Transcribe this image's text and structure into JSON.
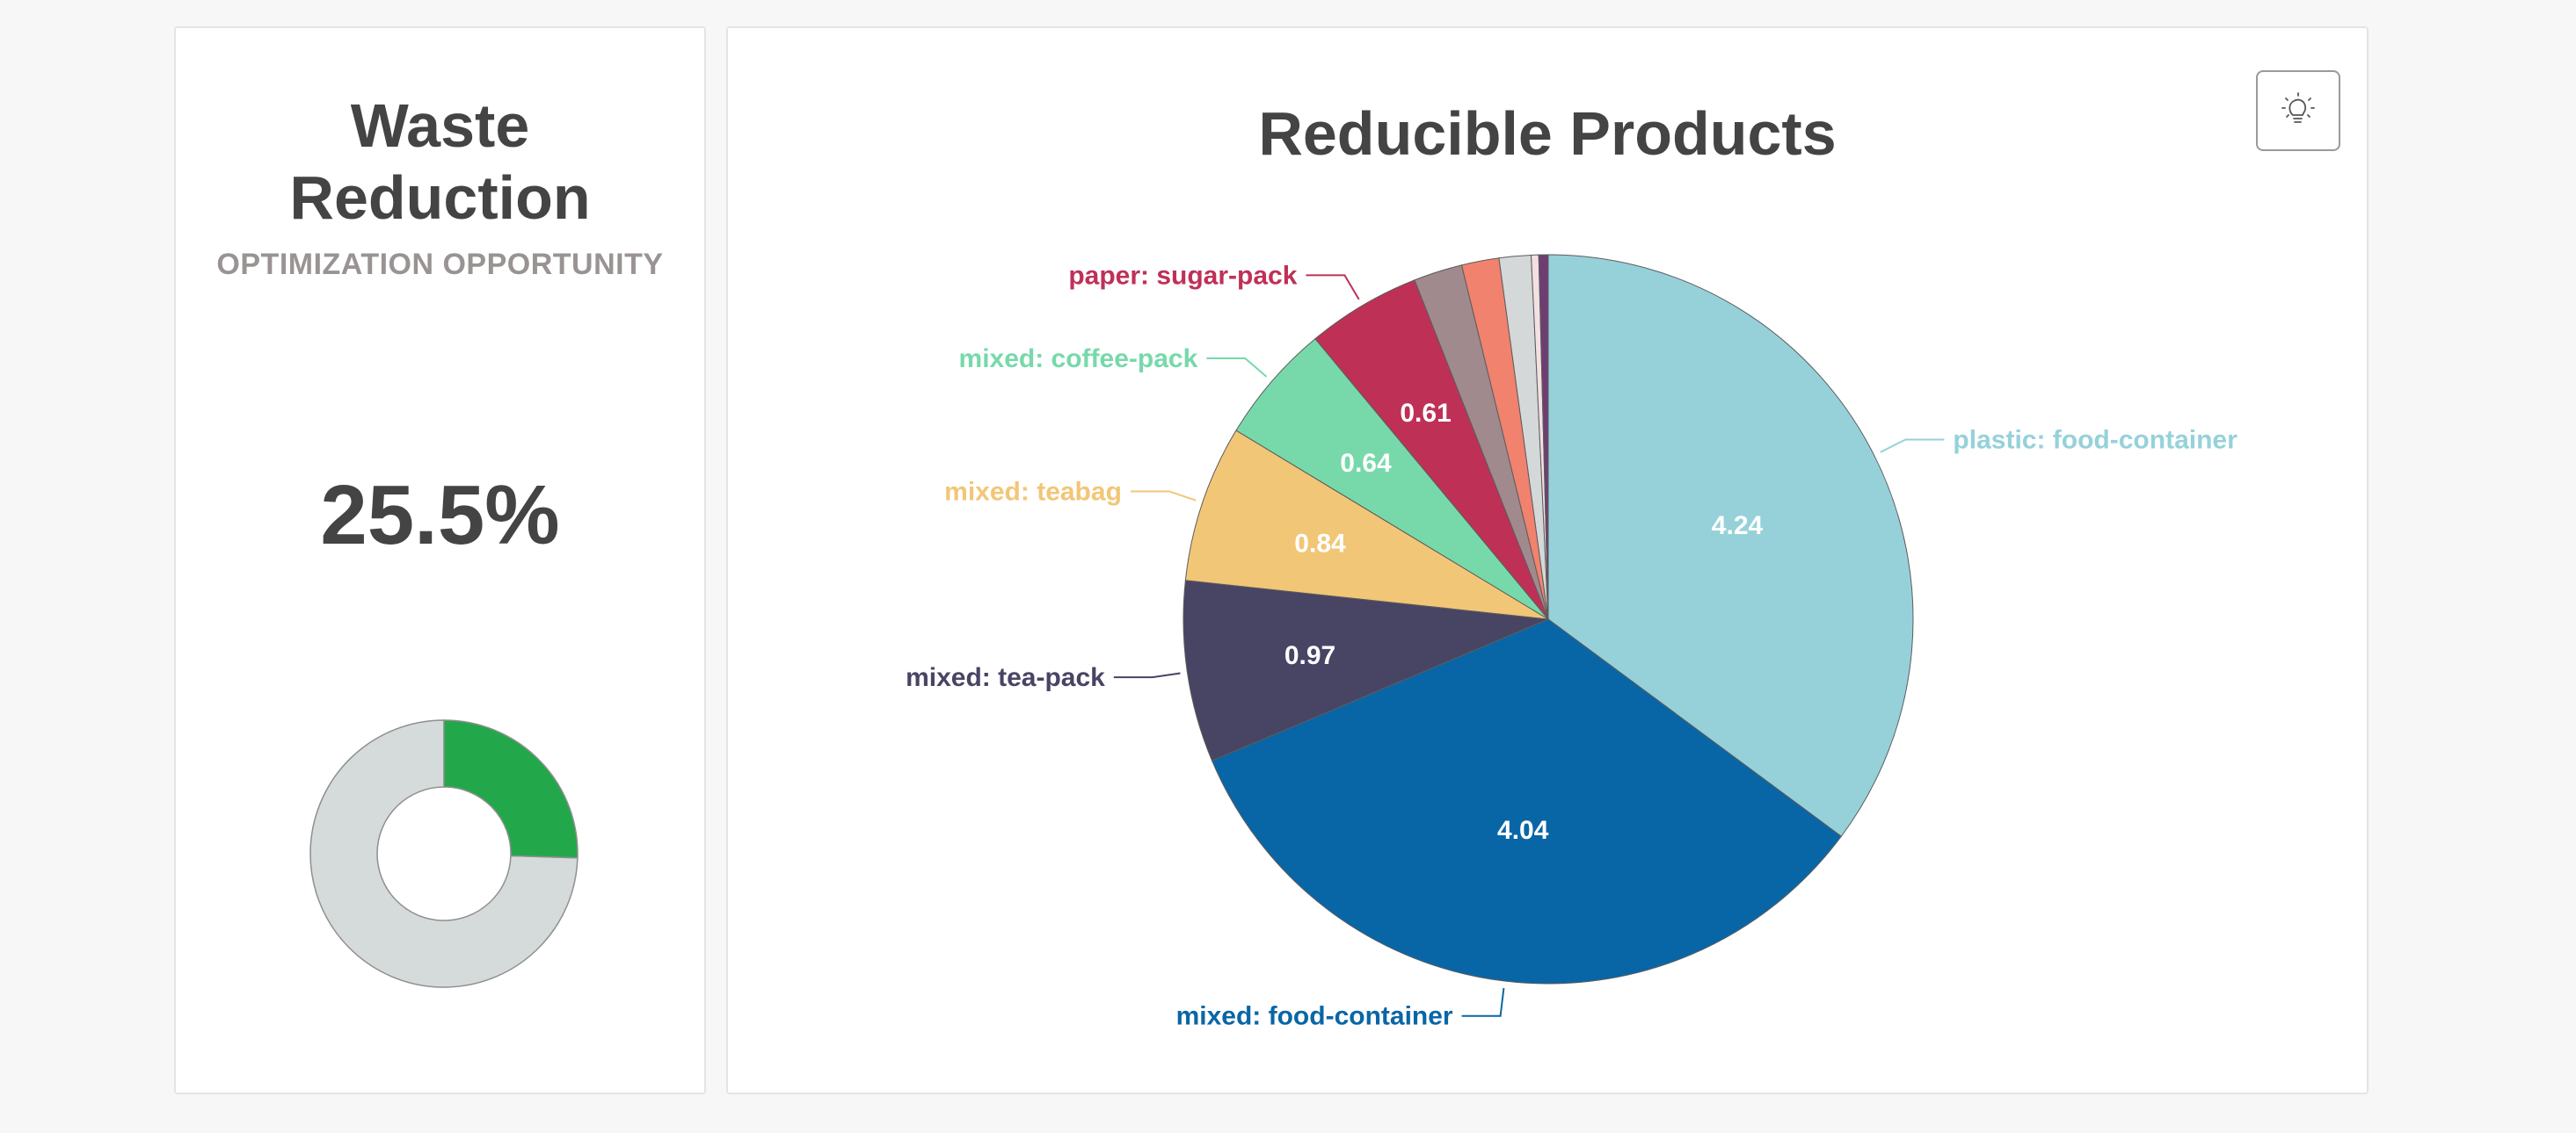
{
  "kpi": {
    "title": "Waste Reduction",
    "subtitle": "OPTIMIZATION OPPORTUNITY",
    "value": "25.5%",
    "gauge": {
      "fraction": 0.255,
      "fill_color": "#22a84a",
      "track_color": "#d5dbda"
    }
  },
  "chart": {
    "title": "Reducible Products",
    "idea_button_icon": "lightbulb-icon"
  },
  "chart_data": {
    "type": "pie",
    "title": "Reducible Products",
    "slices": [
      {
        "label": "plastic: food-container",
        "value": 4.24,
        "color": "#96d1da",
        "show_label": true,
        "show_value": true
      },
      {
        "label": "mixed: food-container",
        "value": 4.04,
        "color": "#0966a6",
        "show_label": true,
        "show_value": true
      },
      {
        "label": "mixed: tea-pack",
        "value": 0.97,
        "color": "#484464",
        "show_label": true,
        "show_value": true
      },
      {
        "label": "mixed: teabag",
        "value": 0.84,
        "color": "#f2c677",
        "show_label": true,
        "show_value": true
      },
      {
        "label": "mixed: coffee-pack",
        "value": 0.64,
        "color": "#77d9aa",
        "show_label": true,
        "show_value": true
      },
      {
        "label": "paper: sugar-pack",
        "value": 0.61,
        "color": "#bf3057",
        "show_label": true,
        "show_value": true
      },
      {
        "label": "",
        "value": 0.26,
        "color": "#a08a8e",
        "show_label": false,
        "show_value": false
      },
      {
        "label": "",
        "value": 0.2,
        "color": "#f0826e",
        "show_label": false,
        "show_value": false
      },
      {
        "label": "",
        "value": 0.17,
        "color": "#d4d8d8",
        "show_label": false,
        "show_value": false
      },
      {
        "label": "",
        "value": 0.04,
        "color": "#f3e0e3",
        "show_label": false,
        "show_value": false
      },
      {
        "label": "",
        "value": 0.05,
        "color": "#6e3e72",
        "show_label": false,
        "show_value": false
      }
    ]
  }
}
